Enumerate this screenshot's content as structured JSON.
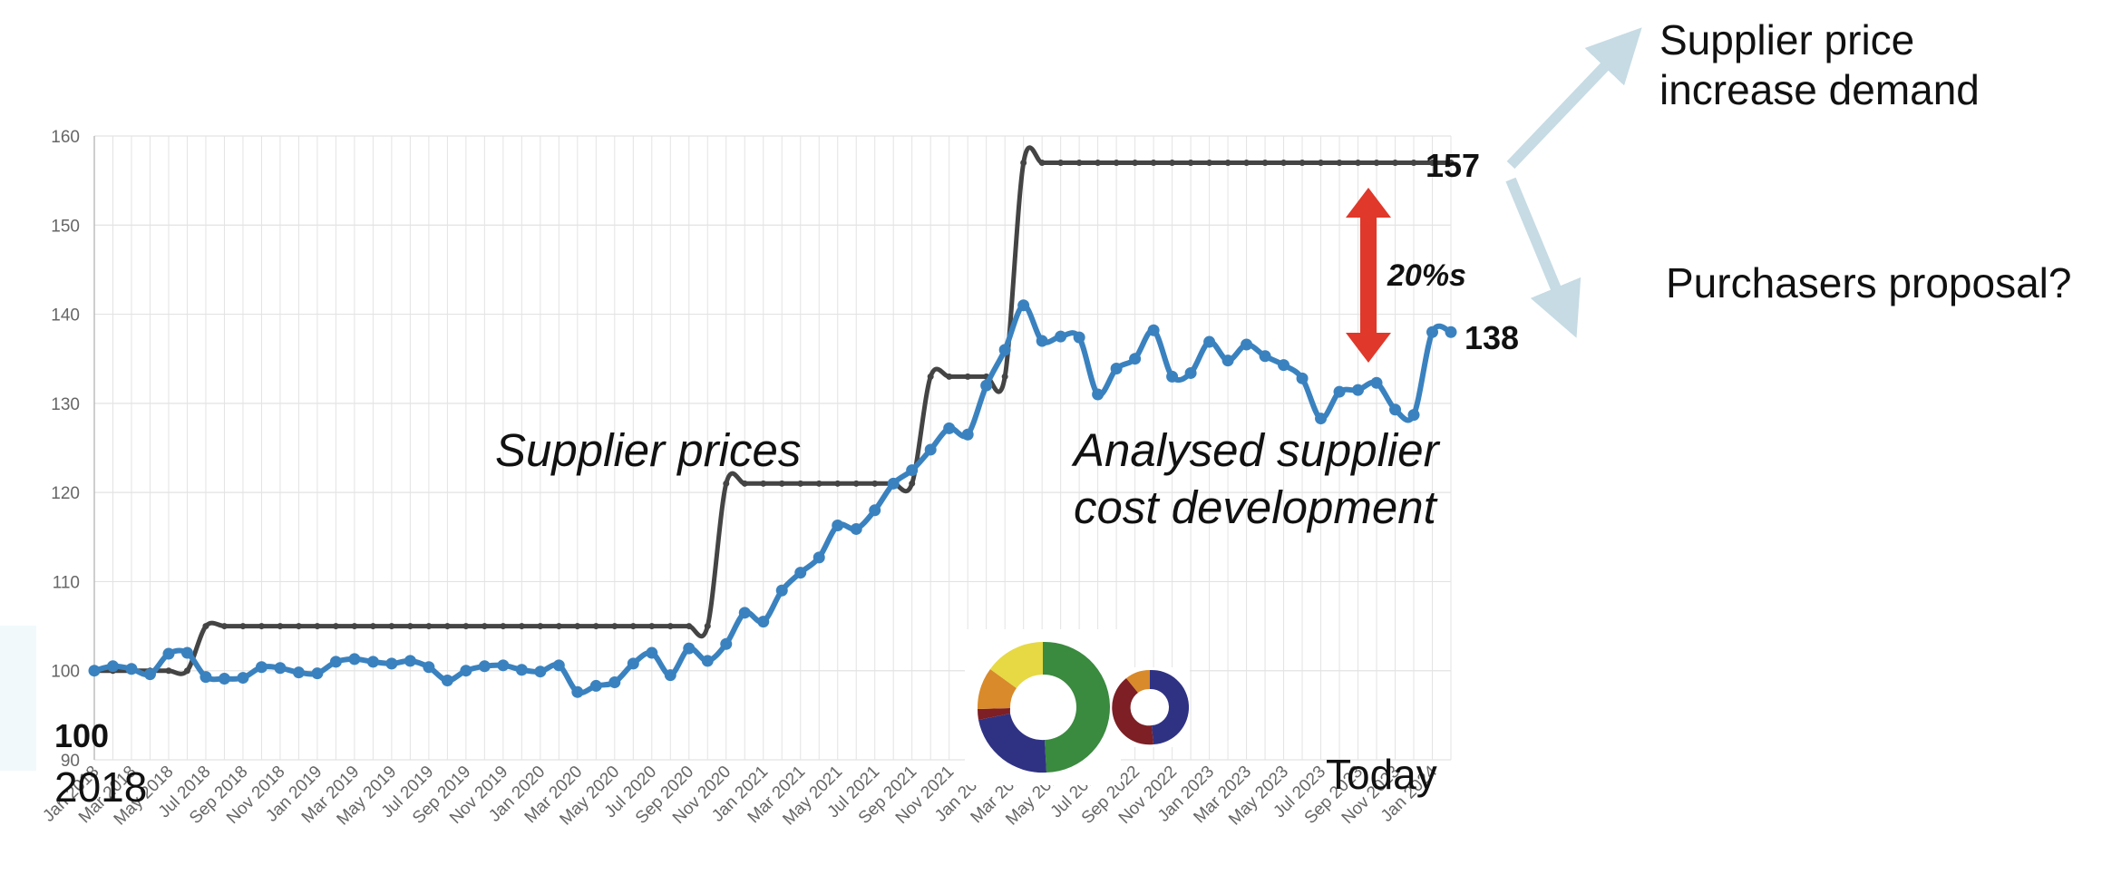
{
  "colors": {
    "supplier_series": "#444444",
    "analysed_series": "#3a82bf",
    "red_arrow": "#e0382a",
    "light_arrow": "#c6dbe4",
    "grid": "#e3e3e3",
    "donut_green": "#3a8a3f",
    "donut_navy": "#2f3283",
    "donut_maroon": "#7d1f24",
    "donut_orange": "#d98a2a",
    "donut_yellow": "#e6d944"
  },
  "annotations": {
    "supplier_prices": "Supplier prices",
    "analysed_line1": "Analysed supplier",
    "analysed_line2": "cost development",
    "value_157": "157",
    "value_138": "138",
    "gap_label": "20%s",
    "increase_line1": "Supplier price",
    "increase_line2": "increase demand",
    "proposal": "Purchasers proposal?",
    "start_value": "100",
    "start_year": "2018",
    "today": "Today"
  },
  "icons": {
    "arrow_up": "arrow-up-right-icon",
    "arrow_down": "arrow-down-right-icon",
    "gap_arrow": "double-arrow-vertical-icon",
    "donut": "donut-chart-icon"
  },
  "chart_data": {
    "type": "line",
    "ylim": [
      90,
      160
    ],
    "yticks": [
      90,
      100,
      110,
      120,
      130,
      140,
      150,
      160
    ],
    "grid": true,
    "x_tick_labels": [
      "Jan 2018",
      "Mar 2018",
      "May 2018",
      "Jul 2018",
      "Sep 2018",
      "Nov 2018",
      "Jan 2019",
      "Mar 2019",
      "May 2019",
      "Jul 2019",
      "Sep 2019",
      "Nov 2019",
      "Jan 2020",
      "Mar 2020",
      "May 2020",
      "Jul 2020",
      "Sep 2020",
      "Nov 2020",
      "Jan 2021",
      "Mar 2021",
      "May 2021",
      "Jul 2021",
      "Sep 2021",
      "Nov 2021",
      "Jan 2022",
      "Mar 2022",
      "May 2022",
      "Jul 2022",
      "Sep 2022",
      "Nov 2022",
      "Jan 2023",
      "Mar 2023",
      "May 2023",
      "Jul 2023",
      "Sep 2023",
      "Nov 2023",
      "Jan 2024"
    ],
    "series": [
      {
        "name": "Supplier prices",
        "color": "#444444",
        "values": [
          100,
          100,
          100,
          100,
          100,
          100,
          105,
          105,
          105,
          105,
          105,
          105,
          105,
          105,
          105,
          105,
          105,
          105,
          105,
          105,
          105,
          105,
          105,
          105,
          105,
          105,
          105,
          105,
          105,
          105,
          105,
          105,
          105,
          105,
          121,
          121,
          121,
          121,
          121,
          121,
          121,
          121,
          121,
          121,
          121,
          133,
          133,
          133,
          133,
          133,
          157,
          157,
          157,
          157,
          157,
          157,
          157,
          157,
          157,
          157,
          157,
          157,
          157,
          157,
          157,
          157,
          157,
          157,
          157,
          157,
          157,
          157,
          157,
          157
        ]
      },
      {
        "name": "Analysed supplier cost development",
        "color": "#3a82bf",
        "values": [
          100,
          100.5,
          100.2,
          99.6,
          101.9,
          102.0,
          99.3,
          99.1,
          99.2,
          100.4,
          100.3,
          99.8,
          99.7,
          101.0,
          101.3,
          101.0,
          100.8,
          101.1,
          100.4,
          98.9,
          100.0,
          100.5,
          100.6,
          100.1,
          99.9,
          100.6,
          97.6,
          98.3,
          98.7,
          100.8,
          102.0,
          99.5,
          102.5,
          101.1,
          103.0,
          106.5,
          105.5,
          109.0,
          111.0,
          112.7,
          116.3,
          115.9,
          118.0,
          121.0,
          122.5,
          124.8,
          127.2,
          126.5,
          132.0,
          136.0,
          141.0,
          137.0,
          137.5,
          137.4,
          131.0,
          133.9,
          135.0,
          138.2,
          133.0,
          133.4,
          136.9,
          134.8,
          136.6,
          135.3,
          134.3,
          132.8,
          128.3,
          131.3,
          131.5,
          132.3,
          129.3,
          128.7,
          138.0,
          138.0
        ]
      }
    ]
  }
}
